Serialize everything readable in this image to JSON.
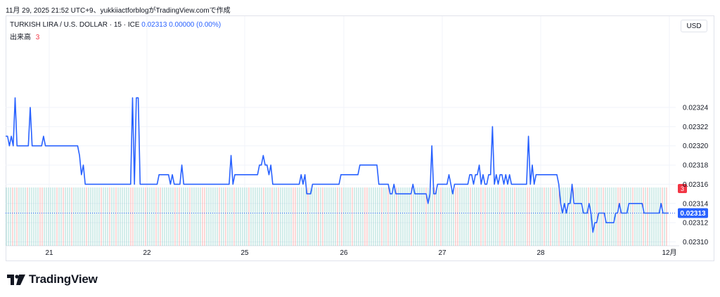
{
  "header": {
    "caption": "11月 29, 2025 21:52 UTC+9、yukkiiactforblogがTradingView.comで作成"
  },
  "legend": {
    "symbol": "TURKISH LIRA / U.S. DOLLAR · 15 · ICE",
    "price": "0.02313",
    "change": "0.00000 (0.00%)",
    "volume_label": "出来高",
    "volume_value": "3"
  },
  "currency_button": "USD",
  "brand": "TradingView",
  "colors": {
    "line": "#2962ff",
    "volume_up": "#26a69a",
    "volume_down": "#ef5350",
    "last_price_tag": "#2962ff",
    "volume_tag": "#f23645",
    "grid": "#f0f3fa",
    "axis_text": "#131722"
  },
  "chart_data": {
    "type": "line",
    "title": "TURKISH LIRA / U.S. DOLLAR · 15 · ICE",
    "x_ticks": [
      "21",
      "22",
      "25",
      "26",
      "27",
      "28",
      "12月"
    ],
    "y_ticks": [
      "0.02324",
      "0.02322",
      "0.02320",
      "0.02318",
      "0.02316",
      "0.02314",
      "0.02312",
      "0.02310"
    ],
    "ylim": [
      0.023096,
      0.023335
    ],
    "grid": true,
    "last_price_label": "0.02313",
    "volume_label": "3",
    "series": [
      {
        "values": [
          0.02321,
          0.02321,
          0.0232,
          0.02321,
          0.0232,
          0.02325,
          0.0232,
          0.0232,
          0.0232,
          0.0232,
          0.0232,
          0.0232,
          0.0232,
          0.02324,
          0.0232,
          0.0232,
          0.0232,
          0.0232,
          0.0232,
          0.0232,
          0.02321,
          0.0232,
          0.0232,
          0.0232,
          0.0232,
          0.0232,
          0.0232,
          0.0232,
          0.0232,
          0.0232,
          0.0232,
          0.0232,
          0.0232,
          0.0232,
          0.0232,
          0.0232,
          0.0232,
          0.0232,
          0.0232,
          0.02319,
          0.02317,
          0.02318,
          0.02316,
          0.02316,
          0.02316,
          0.02316,
          0.02316,
          0.02316,
          0.02316,
          0.02316,
          0.02316,
          0.02316,
          0.02316,
          0.02316,
          0.02316,
          0.02316,
          0.02316,
          0.02316,
          0.02316,
          0.02316,
          0.02316,
          0.02316,
          0.02316,
          0.02316,
          0.02316,
          0.02316,
          0.02316,
          0.02325,
          0.02316,
          0.02325,
          0.02325,
          0.02316,
          0.02316,
          0.02316,
          0.02316,
          0.02316,
          0.02316,
          0.02316,
          0.02316,
          0.02316,
          0.02316,
          0.02317,
          0.02317,
          0.02317,
          0.02317,
          0.02317,
          0.02317,
          0.02316,
          0.02317,
          0.02316,
          0.02316,
          0.02316,
          0.02316,
          0.02318,
          0.02316,
          0.02316,
          0.02316,
          0.02316,
          0.02316,
          0.02316,
          0.02316,
          0.02316,
          0.02316,
          0.02316,
          0.02316,
          0.02316,
          0.02316,
          0.02316,
          0.02316,
          0.02316,
          0.02316,
          0.02316,
          0.02316,
          0.02316,
          0.02316,
          0.02316,
          0.02316,
          0.02316,
          0.02316,
          0.02319,
          0.02316,
          0.02317,
          0.02317,
          0.02317,
          0.02317,
          0.02317,
          0.02317,
          0.02317,
          0.02317,
          0.02317,
          0.02317,
          0.02317,
          0.02317,
          0.02317,
          0.02318,
          0.02318,
          0.02319,
          0.02318,
          0.02318,
          0.02317,
          0.02318,
          0.02316,
          0.02316,
          0.02316,
          0.02316,
          0.02316,
          0.02316,
          0.02316,
          0.02316,
          0.02316,
          0.02316,
          0.02316,
          0.02316,
          0.02316,
          0.02316,
          0.02316,
          0.02317,
          0.02316,
          0.02317,
          0.02315,
          0.02315,
          0.02315,
          0.02316,
          0.02316,
          0.02316,
          0.02316,
          0.02316,
          0.02316,
          0.02316,
          0.02316,
          0.02316,
          0.02316,
          0.02316,
          0.02316,
          0.02316,
          0.02316,
          0.02316,
          0.02317,
          0.02317,
          0.02317,
          0.02317,
          0.02317,
          0.02317,
          0.02317,
          0.02317,
          0.02317,
          0.02317,
          0.02318,
          0.02318,
          0.02318,
          0.02318,
          0.02318,
          0.02318,
          0.02318,
          0.02318,
          0.02318,
          0.02318,
          0.02316,
          0.02316,
          0.02316,
          0.02316,
          0.02316,
          0.02316,
          0.02315,
          0.02315,
          0.02316,
          0.02315,
          0.02315,
          0.02315,
          0.02315,
          0.02315,
          0.02315,
          0.02315,
          0.02315,
          0.02315,
          0.02316,
          0.02315,
          0.02315,
          0.02315,
          0.02315,
          0.02315,
          0.02315,
          0.02315,
          0.02314,
          0.02315,
          0.0232,
          0.02315,
          0.02315,
          0.02316,
          0.02316,
          0.02316,
          0.02316,
          0.02316,
          0.02316,
          0.02317,
          0.02316,
          0.02315,
          0.02316,
          0.02316,
          0.02316,
          0.02316,
          0.02316,
          0.02316,
          0.02316,
          0.02316,
          0.02317,
          0.02317,
          0.02316,
          0.02317,
          0.02317,
          0.02318,
          0.02316,
          0.02317,
          0.02316,
          0.02316,
          0.02317,
          0.02317,
          0.02322,
          0.02316,
          0.02317,
          0.02316,
          0.02317,
          0.02317,
          0.02316,
          0.02317,
          0.02316,
          0.02317,
          0.02316,
          0.02316,
          0.02316,
          0.02316,
          0.02316,
          0.02316,
          0.02316,
          0.02316,
          0.02316,
          0.02321,
          0.02316,
          0.02318,
          0.02316,
          0.02317,
          0.02317,
          0.02317,
          0.02317,
          0.02317,
          0.02317,
          0.02317,
          0.02317,
          0.02317,
          0.02317,
          0.02317,
          0.02317,
          0.02316,
          0.02314,
          0.02313,
          0.02314,
          0.02313,
          0.02314,
          0.02314,
          0.02316,
          0.02314,
          0.02314,
          0.02314,
          0.02314,
          0.02314,
          0.02313,
          0.02313,
          0.02313,
          0.02314,
          0.02313,
          0.02311,
          0.02312,
          0.02312,
          0.02313,
          0.02313,
          0.02313,
          0.02313,
          0.02312,
          0.02312,
          0.02312,
          0.02312,
          0.02312,
          0.02313,
          0.02313,
          0.02314,
          0.02313,
          0.02313,
          0.02313,
          0.02313,
          0.02314,
          0.02314,
          0.02314,
          0.02314,
          0.02314,
          0.02314,
          0.02314,
          0.02314,
          0.02313,
          0.02313,
          0.02313,
          0.02313,
          0.02313,
          0.02313,
          0.02313,
          0.02313,
          0.02313,
          0.02314,
          0.02313,
          0.02313,
          0.02313,
          0.02313
        ]
      }
    ]
  }
}
